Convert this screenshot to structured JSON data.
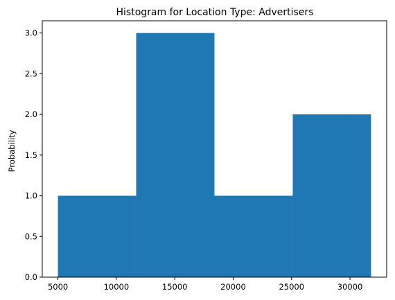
{
  "chart_data": {
    "type": "bar",
    "title": "Histogram for Location Type: Advertisers",
    "xlabel": "",
    "ylabel": "Probability",
    "bins": [
      {
        "x0": 5000,
        "x1": 11700,
        "value": 1
      },
      {
        "x0": 11700,
        "x1": 18400,
        "value": 3
      },
      {
        "x0": 18400,
        "x1": 25100,
        "value": 1
      },
      {
        "x0": 25100,
        "x1": 31800,
        "value": 2
      }
    ],
    "xlim": [
      3660,
      33140
    ],
    "ylim": [
      0,
      3.15
    ],
    "xticks": [
      5000,
      10000,
      15000,
      20000,
      25000,
      30000
    ],
    "xtick_labels": [
      "5000",
      "10000",
      "15000",
      "20000",
      "25000",
      "30000"
    ],
    "yticks": [
      0,
      0.5,
      1,
      1.5,
      2,
      2.5,
      3
    ],
    "ytick_labels": [
      "0.0",
      "0.5",
      "1.0",
      "1.5",
      "2.0",
      "2.5",
      "3.0"
    ],
    "bar_color": "#1f77b4",
    "grid": false,
    "legend": "none"
  }
}
